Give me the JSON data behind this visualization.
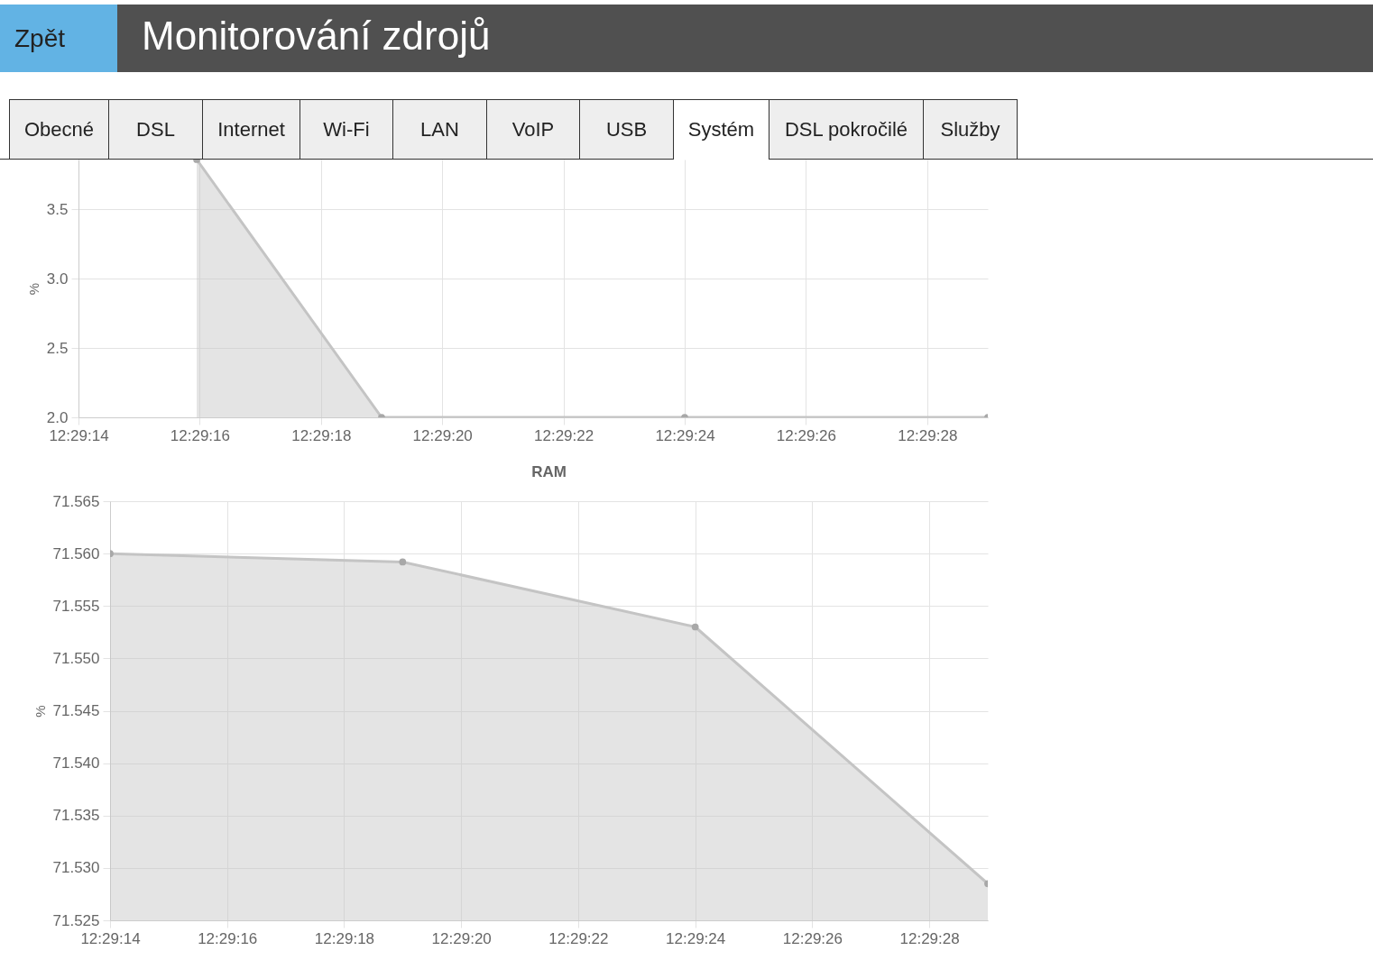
{
  "chart_data": [
    {
      "type": "other",
      "title": "Monitorování zdrojů",
      "annotations": [
        "Zpět",
        "Obecné",
        "DSL",
        "Internet",
        "Wi-Fi",
        "LAN",
        "VoIP",
        "USB",
        "Systém",
        "DSL pokročilé",
        "Služby"
      ]
    },
    {
      "type": "area",
      "ylabel": "%",
      "x": [
        12.4877639,
        12.4886111,
        12.49,
        12.4913889
      ],
      "series": [
        {
          "color": "#c4c4c4",
          "values": [
            3.86,
            2.0,
            2.0,
            2.0
          ]
        }
      ],
      "xlim": [
        12.4872222,
        12.4913889
      ],
      "xticks": [
        {
          "value": 12.4872222,
          "label": "12:29:14"
        },
        {
          "value": 12.4877778,
          "label": "12:29:16"
        },
        {
          "value": 12.4883333,
          "label": "12:29:18"
        },
        {
          "value": 12.4888889,
          "label": "12:29:20"
        },
        {
          "value": 12.4894444,
          "label": "12:29:22"
        },
        {
          "value": 12.49,
          "label": "12:29:24"
        },
        {
          "value": 12.4905556,
          "label": "12:29:26"
        },
        {
          "value": 12.4911111,
          "label": "12:29:28"
        }
      ],
      "ylim": [
        2.0,
        3.86
      ],
      "yticks": [
        {
          "value": 2,
          "label": "2.0"
        },
        {
          "value": 2.5,
          "label": "2.5"
        },
        {
          "value": 3,
          "label": "3.0"
        },
        {
          "value": 3.5,
          "label": "3.5"
        }
      ],
      "grid": true,
      "marker": "circle"
    },
    {
      "type": "area",
      "title": "RAM",
      "ylabel": "%",
      "x": [
        12.4872222,
        12.4886111,
        12.49,
        12.4913889
      ],
      "series": [
        {
          "color": "#c4c4c4",
          "values": [
            71.56,
            71.5592,
            71.553,
            71.5285
          ]
        }
      ],
      "xlim": [
        12.4872222,
        12.4913889
      ],
      "xticks": [
        {
          "value": 12.4872222,
          "label": "12:29:14"
        },
        {
          "value": 12.4877778,
          "label": "12:29:16"
        },
        {
          "value": 12.4883333,
          "label": "12:29:18"
        },
        {
          "value": 12.4888889,
          "label": "12:29:20"
        },
        {
          "value": 12.4894444,
          "label": "12:29:22"
        },
        {
          "value": 12.49,
          "label": "12:29:24"
        },
        {
          "value": 12.4905556,
          "label": "12:29:26"
        },
        {
          "value": 12.4911111,
          "label": "12:29:28"
        }
      ],
      "ylim": [
        71.525,
        71.565
      ],
      "yticks": [
        71.525,
        {
          "value": 71.53,
          "label": "71.530"
        },
        71.535,
        {
          "value": 71.54,
          "label": "71.540"
        },
        71.545,
        {
          "value": 71.55,
          "label": "71.550"
        },
        71.555,
        {
          "value": 71.56,
          "label": "71.560"
        },
        71.565
      ],
      "grid": true,
      "marker": "circle"
    }
  ]
}
